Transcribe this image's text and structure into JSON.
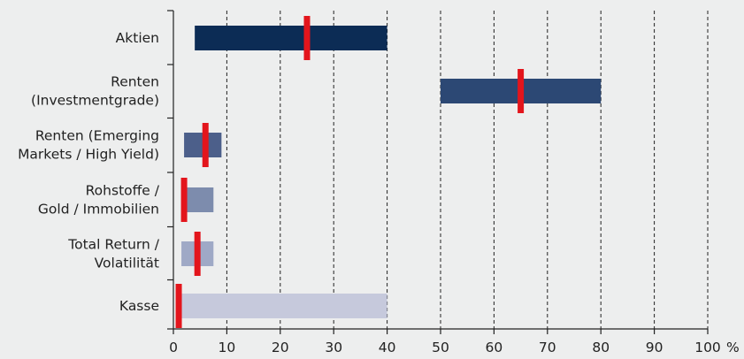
{
  "chart_data": {
    "type": "bar",
    "subtype": "floating-range-with-marker",
    "categories": [
      [
        "Aktien"
      ],
      [
        "Renten",
        "(Investmentgrade)"
      ],
      [
        "Renten (Emerging",
        "Markets / High Yield)"
      ],
      [
        "Rohstoffe /",
        "Gold / Immobilien"
      ],
      [
        "Total Return /",
        "Volatilität"
      ],
      [
        "Kasse"
      ]
    ],
    "ranges": [
      [
        4,
        40
      ],
      [
        50,
        80
      ],
      [
        2,
        9
      ],
      [
        2,
        7.5
      ],
      [
        1.5,
        7.5
      ],
      [
        1.5,
        40
      ]
    ],
    "markers": [
      25,
      65,
      6,
      2,
      4.5,
      1
    ],
    "bar_colors": [
      "#0c2c55",
      "#2c4874",
      "#4c5f8a",
      "#7d8cad",
      "#9fa9c6",
      "#c6c9dc"
    ],
    "marker_color": "#e3151c",
    "xlim": [
      0,
      100
    ],
    "xticks": [
      0,
      10,
      20,
      30,
      40,
      50,
      60,
      70,
      80,
      90,
      100
    ],
    "unit_label": "%",
    "grid": "vertical dashed"
  }
}
